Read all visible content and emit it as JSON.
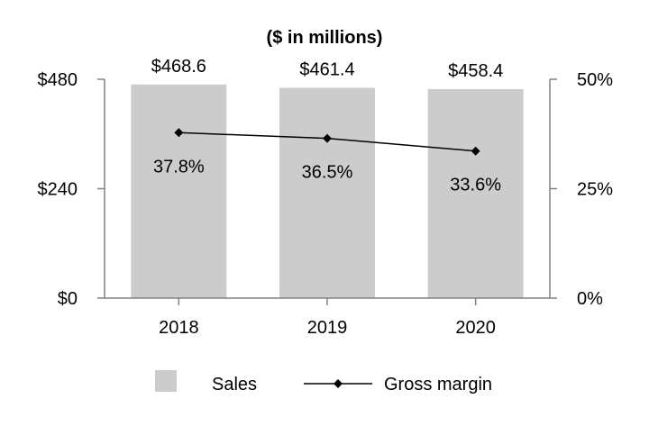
{
  "chart_data": {
    "type": "bar",
    "title": "($ in millions)",
    "categories": [
      "2018",
      "2019",
      "2020"
    ],
    "series": [
      {
        "name": "Sales",
        "kind": "bar",
        "axis": "left",
        "values": [
          468.6,
          461.4,
          458.4
        ],
        "labels": [
          "$468.6",
          "$461.4",
          "$458.4"
        ],
        "color": "#cccccc"
      },
      {
        "name": "Gross margin",
        "kind": "line",
        "axis": "right",
        "values": [
          37.8,
          36.5,
          33.6
        ],
        "labels": [
          "37.8%",
          "36.5%",
          "33.6%"
        ],
        "color": "#000000"
      }
    ],
    "left_axis": {
      "min": 0,
      "max": 480,
      "ticks": [
        0,
        240,
        480
      ],
      "tick_labels": [
        "$0",
        "$240",
        "$480"
      ]
    },
    "right_axis": {
      "min": 0,
      "max": 50,
      "ticks": [
        0,
        25,
        50
      ],
      "tick_labels": [
        "0%",
        "25%",
        "50%"
      ]
    },
    "xlabel": "",
    "ylabel": "",
    "legend": {
      "position": "bottom",
      "entries": [
        "Sales",
        "Gross margin"
      ]
    },
    "grid": false
  }
}
